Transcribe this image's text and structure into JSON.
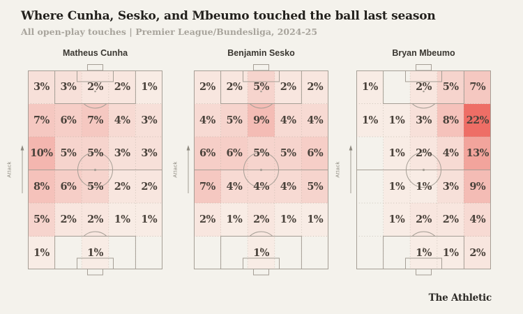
{
  "header": {
    "title": "Where Cunha, Sesko, and Mbeumo touched the ball last season",
    "subtitle": "All open-play touches | Premier League/Bundesliga, 2024-25"
  },
  "footer": {
    "brand": "The Athletic"
  },
  "chart_data": {
    "type": "heatmap",
    "title": "Where Cunha, Sesko, and Mbeumo touched the ball last season",
    "subtitle": "All open-play touches | Premier League/Bundesliga, 2024-25",
    "unit": "%",
    "rows": 6,
    "cols": 5,
    "orientation": "attacking-up",
    "attack_label": "Attack",
    "legend_position": "none",
    "color_scale": {
      "min_value": 1,
      "max_value": 22,
      "min_color": "#f8ece5",
      "max_color": "#ee6e66",
      "empty_color": "transparent"
    },
    "pitches": [
      {
        "player": "Matheus Cunha",
        "grid": [
          [
            3,
            3,
            2,
            2,
            1
          ],
          [
            7,
            6,
            7,
            4,
            3
          ],
          [
            10,
            5,
            5,
            3,
            3
          ],
          [
            8,
            6,
            5,
            2,
            2
          ],
          [
            5,
            2,
            2,
            1,
            1
          ],
          [
            1,
            null,
            1,
            null,
            null
          ]
        ]
      },
      {
        "player": "Benjamin Sesko",
        "grid": [
          [
            2,
            2,
            5,
            2,
            2
          ],
          [
            4,
            5,
            9,
            4,
            4
          ],
          [
            6,
            6,
            5,
            5,
            6
          ],
          [
            7,
            4,
            4,
            4,
            5
          ],
          [
            2,
            1,
            2,
            1,
            1
          ],
          [
            null,
            null,
            1,
            null,
            null
          ]
        ]
      },
      {
        "player": "Bryan Mbeumo",
        "grid": [
          [
            1,
            null,
            2,
            5,
            7
          ],
          [
            1,
            1,
            3,
            8,
            22
          ],
          [
            null,
            1,
            2,
            4,
            13
          ],
          [
            null,
            1,
            1,
            3,
            9
          ],
          [
            null,
            1,
            2,
            2,
            4
          ],
          [
            null,
            null,
            1,
            1,
            2
          ]
        ]
      }
    ]
  },
  "colors": {
    "background": "#f4f2ec",
    "pitch_line": "#a59e95",
    "grid_dot_line": "#b3ac9f",
    "value_text": "#4a423b",
    "title_text": "#22201c",
    "subtitle_text": "#a8a49c",
    "attack_indicator": "#8d897f"
  }
}
